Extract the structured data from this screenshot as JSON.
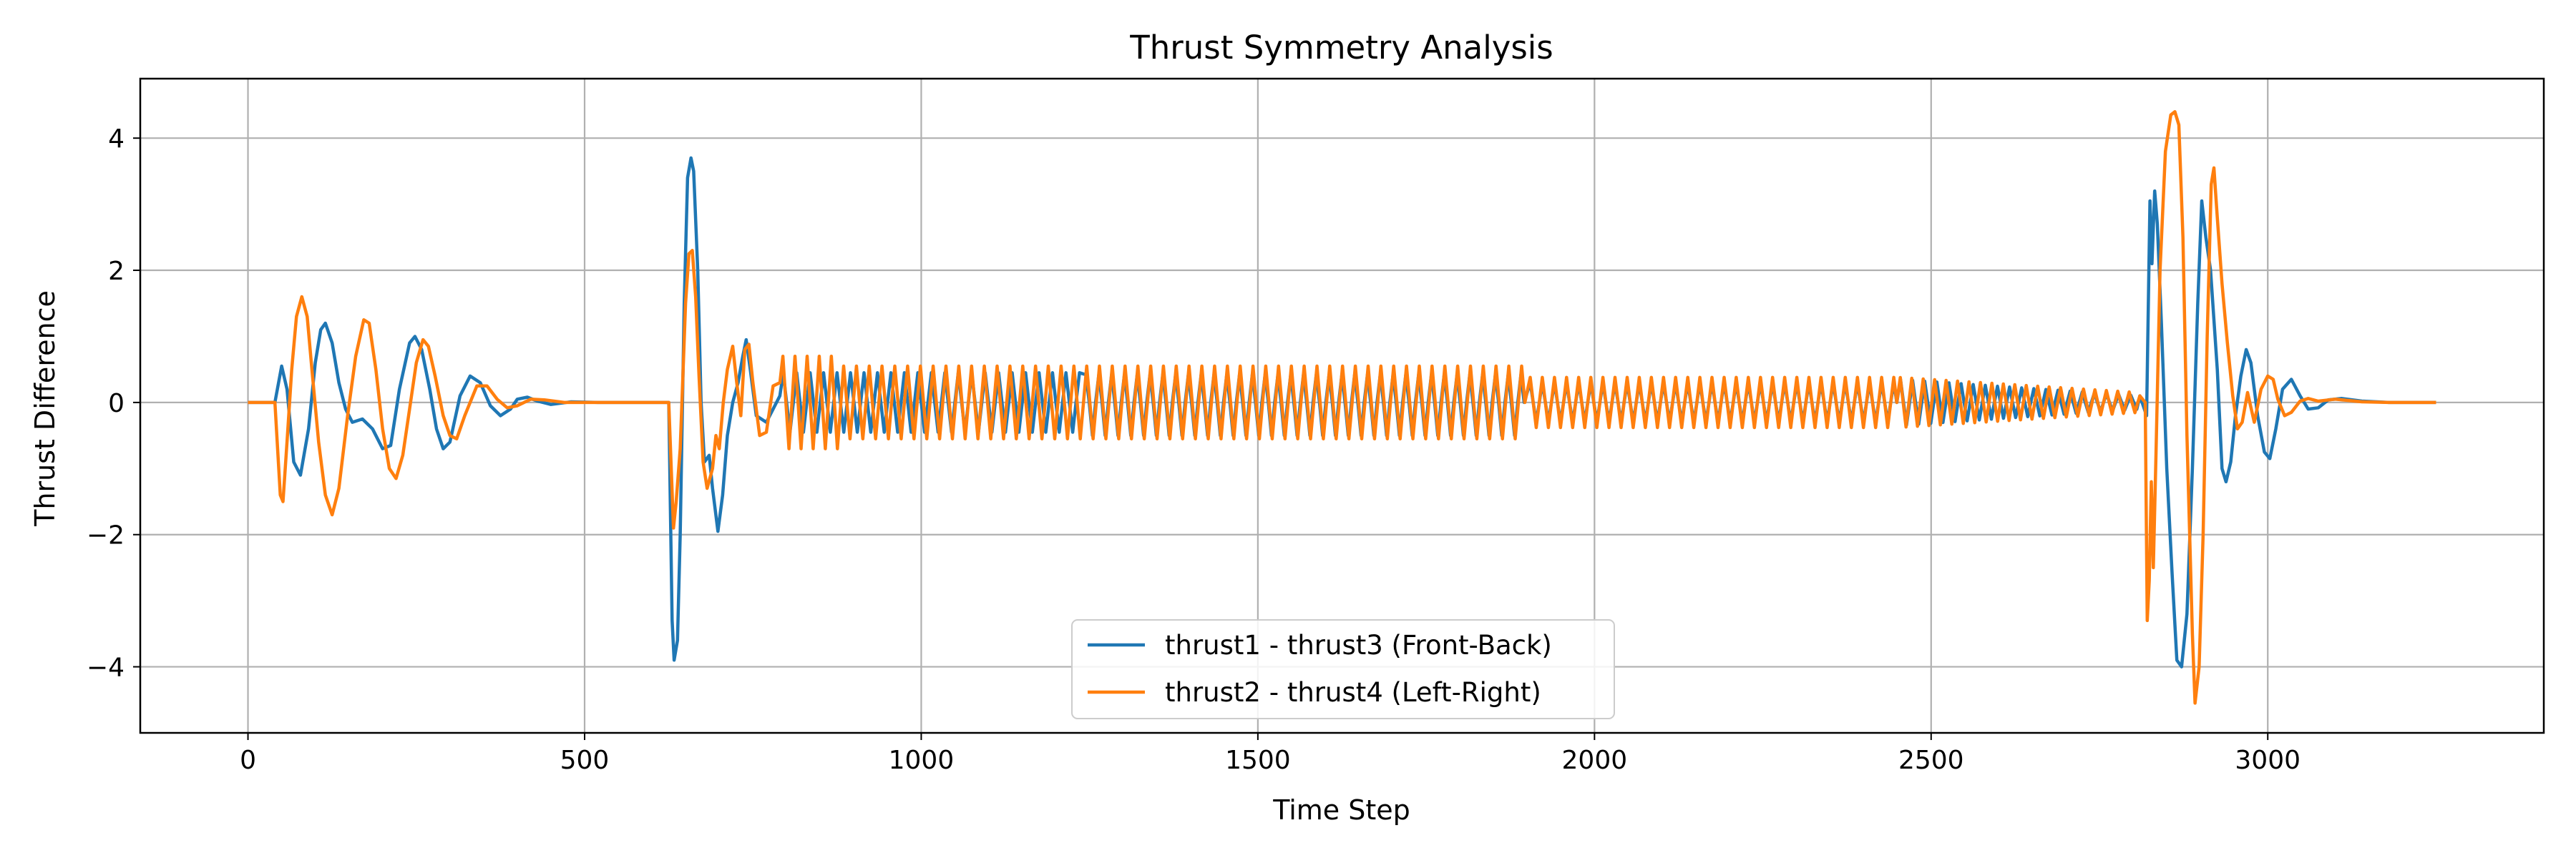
{
  "chart_data": {
    "type": "line",
    "title": "Thrust Symmetry Analysis",
    "xlabel": "Time Step",
    "ylabel": "Thrust Difference",
    "xlim": [
      -160,
      3410
    ],
    "ylim": [
      -5,
      4.9
    ],
    "x_ticks": [
      0,
      500,
      1000,
      1500,
      2000,
      2500,
      3000
    ],
    "y_ticks": [
      -4,
      -2,
      0,
      2,
      4
    ],
    "x_tick_labels": [
      "0",
      "500",
      "1000",
      "1500",
      "2000",
      "2500",
      "3000"
    ],
    "y_tick_labels": [
      "−4",
      "−2",
      "0",
      "2",
      "4"
    ],
    "grid": true,
    "legend_position": "lower-center",
    "series": [
      {
        "name": "thrust1 - thrust3 (Front-Back)",
        "color": "#1f77b4",
        "points": [
          [
            0,
            0
          ],
          [
            40,
            0
          ],
          [
            50,
            0.55
          ],
          [
            58,
            0.2
          ],
          [
            68,
            -0.9
          ],
          [
            78,
            -1.1
          ],
          [
            90,
            -0.4
          ],
          [
            100,
            0.6
          ],
          [
            108,
            1.1
          ],
          [
            115,
            1.2
          ],
          [
            125,
            0.9
          ],
          [
            135,
            0.3
          ],
          [
            145,
            -0.1
          ],
          [
            155,
            -0.3
          ],
          [
            170,
            -0.25
          ],
          [
            185,
            -0.4
          ],
          [
            200,
            -0.7
          ],
          [
            212,
            -0.65
          ],
          [
            225,
            0.2
          ],
          [
            240,
            0.9
          ],
          [
            248,
            1.0
          ],
          [
            258,
            0.8
          ],
          [
            270,
            0.2
          ],
          [
            280,
            -0.4
          ],
          [
            290,
            -0.7
          ],
          [
            300,
            -0.6
          ],
          [
            315,
            0.1
          ],
          [
            330,
            0.4
          ],
          [
            345,
            0.3
          ],
          [
            360,
            -0.05
          ],
          [
            375,
            -0.2
          ],
          [
            390,
            -0.1
          ],
          [
            400,
            0.05
          ],
          [
            415,
            0.08
          ],
          [
            430,
            0.02
          ],
          [
            450,
            -0.03
          ],
          [
            480,
            0.01
          ],
          [
            520,
            0
          ],
          [
            560,
            0
          ],
          [
            625,
            0
          ],
          [
            630,
            -3.3
          ],
          [
            633,
            -3.9
          ],
          [
            638,
            -3.6
          ],
          [
            642,
            -2.0
          ],
          [
            648,
            1.5
          ],
          [
            653,
            3.4
          ],
          [
            658,
            3.7
          ],
          [
            662,
            3.5
          ],
          [
            668,
            2.0
          ],
          [
            673,
            0
          ],
          [
            678,
            -0.9
          ],
          [
            685,
            -0.8
          ],
          [
            690,
            -1.3
          ],
          [
            698,
            -1.95
          ],
          [
            705,
            -1.4
          ],
          [
            712,
            -0.5
          ],
          [
            720,
            0
          ],
          [
            728,
            0.3
          ],
          [
            735,
            0.7
          ],
          [
            740,
            0.95
          ],
          [
            746,
            0.5
          ],
          [
            755,
            -0.2
          ],
          [
            770,
            -0.3
          ],
          [
            790,
            0.1
          ]
        ],
        "osc": [
          {
            "x0": 790,
            "x1": 1240,
            "amp": 0.45,
            "period": 20
          },
          {
            "x0": 1240,
            "x1": 1900,
            "amp": 0.42,
            "period": 19,
            "offset": -0.08
          },
          {
            "x0": 1900,
            "x1": 2450,
            "amp": 0.3,
            "period": 18
          },
          {
            "x0": 2450,
            "x1": 2810,
            "amp": 0.35,
            "period": 18,
            "decay_to": 0.1
          }
        ],
        "points_after": [
          [
            2810,
            0.1
          ],
          [
            2820,
            -0.2
          ],
          [
            2825,
            3.05
          ],
          [
            2828,
            2.1
          ],
          [
            2832,
            3.2
          ],
          [
            2836,
            2.7
          ],
          [
            2842,
            1.2
          ],
          [
            2850,
            -1.0
          ],
          [
            2858,
            -2.6
          ],
          [
            2865,
            -3.9
          ],
          [
            2872,
            -4.0
          ],
          [
            2880,
            -3.2
          ],
          [
            2888,
            -1.0
          ],
          [
            2896,
            1.5
          ],
          [
            2902,
            3.05
          ],
          [
            2908,
            2.5
          ],
          [
            2915,
            2.0
          ],
          [
            2925,
            0.5
          ],
          [
            2932,
            -1.0
          ],
          [
            2938,
            -1.2
          ],
          [
            2945,
            -0.9
          ],
          [
            2952,
            -0.2
          ],
          [
            2960,
            0.4
          ],
          [
            2968,
            0.8
          ],
          [
            2975,
            0.6
          ],
          [
            2985,
            -0.2
          ],
          [
            2995,
            -0.75
          ],
          [
            3003,
            -0.85
          ],
          [
            3012,
            -0.4
          ],
          [
            3022,
            0.2
          ],
          [
            3035,
            0.35
          ],
          [
            3048,
            0.1
          ],
          [
            3060,
            -0.1
          ],
          [
            3075,
            -0.08
          ],
          [
            3090,
            0.04
          ],
          [
            3110,
            0.06
          ],
          [
            3140,
            0.02
          ],
          [
            3180,
            0
          ],
          [
            3250,
            0
          ]
        ]
      },
      {
        "name": "thrust2 - thrust4 (Left-Right)",
        "color": "#ff7f0e",
        "points": [
          [
            0,
            0
          ],
          [
            40,
            0
          ],
          [
            48,
            -1.4
          ],
          [
            52,
            -1.5
          ],
          [
            58,
            -0.6
          ],
          [
            65,
            0.5
          ],
          [
            72,
            1.3
          ],
          [
            80,
            1.6
          ],
          [
            88,
            1.3
          ],
          [
            95,
            0.5
          ],
          [
            105,
            -0.6
          ],
          [
            115,
            -1.4
          ],
          [
            125,
            -1.7
          ],
          [
            135,
            -1.3
          ],
          [
            148,
            -0.2
          ],
          [
            160,
            0.7
          ],
          [
            172,
            1.25
          ],
          [
            180,
            1.2
          ],
          [
            190,
            0.5
          ],
          [
            200,
            -0.4
          ],
          [
            210,
            -1.0
          ],
          [
            220,
            -1.15
          ],
          [
            230,
            -0.8
          ],
          [
            240,
            -0.1
          ],
          [
            250,
            0.6
          ],
          [
            260,
            0.95
          ],
          [
            268,
            0.85
          ],
          [
            278,
            0.4
          ],
          [
            290,
            -0.2
          ],
          [
            300,
            -0.5
          ],
          [
            310,
            -0.55
          ],
          [
            322,
            -0.2
          ],
          [
            340,
            0.25
          ],
          [
            355,
            0.25
          ],
          [
            370,
            0.05
          ],
          [
            385,
            -0.08
          ],
          [
            400,
            -0.05
          ],
          [
            420,
            0.05
          ],
          [
            440,
            0.04
          ],
          [
            470,
            0
          ],
          [
            520,
            0
          ],
          [
            560,
            0
          ],
          [
            625,
            0
          ],
          [
            632,
            -1.9
          ],
          [
            636,
            -1.5
          ],
          [
            642,
            -0.7
          ],
          [
            650,
            1.5
          ],
          [
            655,
            2.25
          ],
          [
            660,
            2.3
          ],
          [
            665,
            1.6
          ],
          [
            670,
            0.4
          ],
          [
            676,
            -0.9
          ],
          [
            682,
            -1.3
          ],
          [
            690,
            -1.0
          ],
          [
            695,
            -0.5
          ],
          [
            700,
            -0.7
          ],
          [
            706,
            0
          ],
          [
            712,
            0.5
          ],
          [
            720,
            0.85
          ],
          [
            726,
            0.3
          ],
          [
            732,
            -0.2
          ],
          [
            738,
            0.8
          ],
          [
            744,
            0.88
          ],
          [
            750,
            0.3
          ],
          [
            760,
            -0.5
          ],
          [
            770,
            -0.45
          ],
          [
            780,
            0.25
          ],
          [
            790,
            0.3
          ]
        ],
        "osc": [
          {
            "x0": 790,
            "x1": 880,
            "amp": 0.7,
            "period": 18
          },
          {
            "x0": 880,
            "x1": 1900,
            "amp": 0.55,
            "period": 19
          },
          {
            "x0": 1900,
            "x1": 2450,
            "amp": 0.38,
            "period": 18
          },
          {
            "x0": 2450,
            "x1": 2810,
            "amp": 0.38,
            "period": 17,
            "decay_to": 0.15
          }
        ],
        "points_after": [
          [
            2810,
            0.1
          ],
          [
            2818,
            0.0
          ],
          [
            2821,
            -3.3
          ],
          [
            2824,
            -2.7
          ],
          [
            2827,
            -1.2
          ],
          [
            2830,
            -2.5
          ],
          [
            2834,
            -0.8
          ],
          [
            2840,
            2.0
          ],
          [
            2848,
            3.8
          ],
          [
            2856,
            4.35
          ],
          [
            2862,
            4.4
          ],
          [
            2868,
            4.2
          ],
          [
            2874,
            2.5
          ],
          [
            2880,
            -0.5
          ],
          [
            2888,
            -3.5
          ],
          [
            2892,
            -4.55
          ],
          [
            2898,
            -4.0
          ],
          [
            2904,
            -2.0
          ],
          [
            2910,
            1.0
          ],
          [
            2916,
            3.3
          ],
          [
            2920,
            3.55
          ],
          [
            2925,
            2.8
          ],
          [
            2932,
            1.8
          ],
          [
            2940,
            0.9
          ],
          [
            2948,
            0.1
          ],
          [
            2955,
            -0.4
          ],
          [
            2962,
            -0.3
          ],
          [
            2970,
            0.15
          ],
          [
            2980,
            -0.3
          ],
          [
            2990,
            0.2
          ],
          [
            3000,
            0.4
          ],
          [
            3008,
            0.35
          ],
          [
            3015,
            0.05
          ],
          [
            3025,
            -0.2
          ],
          [
            3035,
            -0.15
          ],
          [
            3048,
            0.02
          ],
          [
            3060,
            0.06
          ],
          [
            3075,
            0.02
          ],
          [
            3100,
            0.05
          ],
          [
            3140,
            0.01
          ],
          [
            3180,
            0
          ],
          [
            3250,
            0
          ]
        ]
      }
    ]
  }
}
